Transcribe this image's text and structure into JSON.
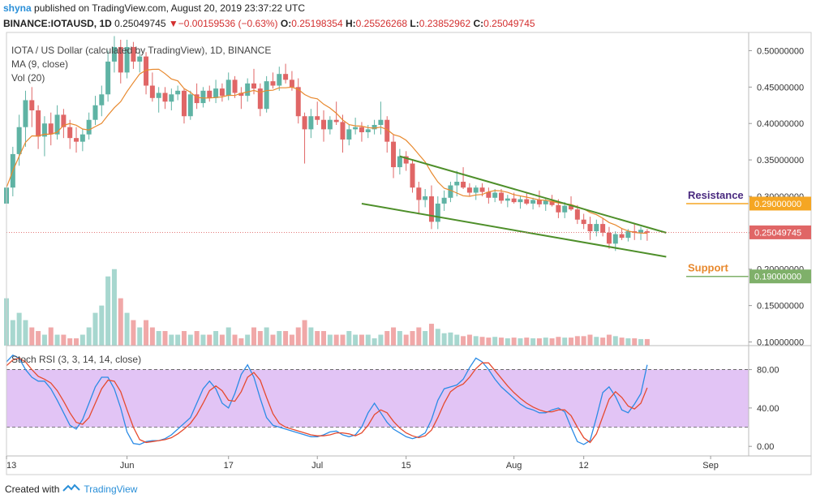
{
  "header": {
    "user": "shyna",
    "published": "published on TradingView.com, August 20, 2019 23:37:22 UTC",
    "symbol": "BINANCE:IOTAUSD, 1D",
    "price": "0.25049745",
    "change": "−0.00159536 (−0.63%)",
    "o_label": "O:",
    "o_val": "0.25198354",
    "h_label": "H:",
    "h_val": "0.25526268",
    "l_label": "L:",
    "l_val": "0.23852962",
    "c_label": "C:",
    "c_val": "0.25049745"
  },
  "legend": {
    "title": "IOTA / US Dollar (calculated by TradingView), 1D, BINANCE",
    "ma": "MA (9, close)",
    "vol": "Vol (20)",
    "rsi": "Stoch RSI (3, 3, 14, 14, close)"
  },
  "footer": {
    "created_with": "Created with",
    "brand": "TradingView"
  },
  "annotations": {
    "resistance": "Resistance",
    "support": "Support",
    "resistance_price": "0.29000000",
    "support_price": "0.19000000",
    "last_price": "0.25049745"
  },
  "colors": {
    "up": "#5fb3a4",
    "down": "#e06666",
    "vol_up": "#a7d7cf",
    "vol_down": "#f0a8a8",
    "ma": "#e8892e",
    "trend": "#4e8f2a",
    "resistance_color": "#f5a623",
    "support_color": "#7fb06a",
    "rsi_k": "#2b8be6",
    "rsi_d": "#e64a2e",
    "rsi_band": "#e2c4f5"
  },
  "chart_data": [
    {
      "type": "candlestick",
      "title": "IOTA / US Dollar (calculated by TradingView), 1D, BINANCE",
      "ylim": [
        0.095,
        0.525
      ],
      "yticks": [
        "0.50000000",
        "0.45000000",
        "0.40000000",
        "0.35000000",
        "0.30000000",
        "0.25000000",
        "0.20000000",
        "0.15000000",
        "0.10000000"
      ],
      "xticks": [
        "13",
        "Jun",
        "17",
        "Jul",
        "15",
        "Aug",
        "12",
        "Sep"
      ],
      "x_range": [
        "2019-05-13",
        "2019-09-07"
      ],
      "xtick_dates": [
        "2019-05-13",
        "2019-06-01",
        "2019-06-17",
        "2019-07-01",
        "2019-07-15",
        "2019-08-01",
        "2019-08-12",
        "2019-09-01"
      ],
      "ohlc": [
        [
          0.29,
          0.325,
          0.275,
          0.312
        ],
        [
          0.312,
          0.368,
          0.3,
          0.358
        ],
        [
          0.358,
          0.412,
          0.342,
          0.395
        ],
        [
          0.395,
          0.445,
          0.368,
          0.432
        ],
        [
          0.432,
          0.45,
          0.395,
          0.418
        ],
        [
          0.418,
          0.425,
          0.365,
          0.382
        ],
        [
          0.382,
          0.41,
          0.355,
          0.4
        ],
        [
          0.4,
          0.415,
          0.37,
          0.385
        ],
        [
          0.385,
          0.425,
          0.378,
          0.412
        ],
        [
          0.412,
          0.42,
          0.38,
          0.395
        ],
        [
          0.395,
          0.405,
          0.365,
          0.38
        ],
        [
          0.38,
          0.395,
          0.36,
          0.375
        ],
        [
          0.375,
          0.392,
          0.362,
          0.385
        ],
        [
          0.385,
          0.415,
          0.378,
          0.405
        ],
        [
          0.405,
          0.438,
          0.398,
          0.425
        ],
        [
          0.425,
          0.452,
          0.41,
          0.44
        ],
        [
          0.44,
          0.5,
          0.43,
          0.485
        ],
        [
          0.485,
          0.52,
          0.47,
          0.505
        ],
        [
          0.505,
          0.515,
          0.455,
          0.47
        ],
        [
          0.47,
          0.515,
          0.462,
          0.505
        ],
        [
          0.505,
          0.512,
          0.475,
          0.485
        ],
        [
          0.485,
          0.5,
          0.47,
          0.492
        ],
        [
          0.492,
          0.498,
          0.44,
          0.452
        ],
        [
          0.452,
          0.47,
          0.43,
          0.435
        ],
        [
          0.435,
          0.45,
          0.415,
          0.442
        ],
        [
          0.442,
          0.45,
          0.42,
          0.43
        ],
        [
          0.43,
          0.448,
          0.418,
          0.44
        ],
        [
          0.44,
          0.452,
          0.432,
          0.445
        ],
        [
          0.445,
          0.448,
          0.4,
          0.41
        ],
        [
          0.41,
          0.445,
          0.405,
          0.44
        ],
        [
          0.44,
          0.455,
          0.42,
          0.428
        ],
        [
          0.428,
          0.45,
          0.422,
          0.445
        ],
        [
          0.445,
          0.452,
          0.43,
          0.435
        ],
        [
          0.435,
          0.46,
          0.428,
          0.448
        ],
        [
          0.448,
          0.455,
          0.43,
          0.438
        ],
        [
          0.438,
          0.47,
          0.432,
          0.46
        ],
        [
          0.46,
          0.465,
          0.435,
          0.442
        ],
        [
          0.442,
          0.45,
          0.42,
          0.438
        ],
        [
          0.438,
          0.462,
          0.43,
          0.455
        ],
        [
          0.455,
          0.475,
          0.44,
          0.448
        ],
        [
          0.448,
          0.455,
          0.41,
          0.42
        ],
        [
          0.42,
          0.465,
          0.415,
          0.458
        ],
        [
          0.458,
          0.47,
          0.448,
          0.452
        ],
        [
          0.452,
          0.478,
          0.445,
          0.468
        ],
        [
          0.468,
          0.482,
          0.455,
          0.46
        ],
        [
          0.46,
          0.472,
          0.445,
          0.45
        ],
        [
          0.45,
          0.462,
          0.4,
          0.41
        ],
        [
          0.41,
          0.415,
          0.345,
          0.392
        ],
        [
          0.392,
          0.42,
          0.38,
          0.41
        ],
        [
          0.41,
          0.43,
          0.398,
          0.405
        ],
        [
          0.405,
          0.418,
          0.375,
          0.392
        ],
        [
          0.392,
          0.41,
          0.385,
          0.405
        ],
        [
          0.405,
          0.43,
          0.398,
          0.402
        ],
        [
          0.402,
          0.412,
          0.36,
          0.378
        ],
        [
          0.378,
          0.398,
          0.37,
          0.392
        ],
        [
          0.392,
          0.408,
          0.385,
          0.395
        ],
        [
          0.395,
          0.402,
          0.375,
          0.388
        ],
        [
          0.388,
          0.398,
          0.38,
          0.392
        ],
        [
          0.392,
          0.405,
          0.385,
          0.398
        ],
        [
          0.398,
          0.43,
          0.385,
          0.405
        ],
        [
          0.405,
          0.41,
          0.36,
          0.375
        ],
        [
          0.375,
          0.385,
          0.325,
          0.34
        ],
        [
          0.34,
          0.365,
          0.33,
          0.355
        ],
        [
          0.355,
          0.362,
          0.335,
          0.345
        ],
        [
          0.345,
          0.35,
          0.305,
          0.312
        ],
        [
          0.312,
          0.32,
          0.275,
          0.295
        ],
        [
          0.295,
          0.31,
          0.285,
          0.3
        ],
        [
          0.3,
          0.315,
          0.255,
          0.265
        ],
        [
          0.265,
          0.3,
          0.255,
          0.29
        ],
        [
          0.29,
          0.308,
          0.28,
          0.298
        ],
        [
          0.298,
          0.32,
          0.292,
          0.315
        ],
        [
          0.315,
          0.335,
          0.3,
          0.32
        ],
        [
          0.32,
          0.34,
          0.31,
          0.312
        ],
        [
          0.312,
          0.318,
          0.3,
          0.305
        ],
        [
          0.305,
          0.315,
          0.295,
          0.312
        ],
        [
          0.312,
          0.318,
          0.3,
          0.306
        ],
        [
          0.306,
          0.312,
          0.29,
          0.298
        ],
        [
          0.298,
          0.31,
          0.292,
          0.305
        ],
        [
          0.305,
          0.31,
          0.29,
          0.294
        ],
        [
          0.294,
          0.302,
          0.285,
          0.297
        ],
        [
          0.297,
          0.305,
          0.29,
          0.292
        ],
        [
          0.292,
          0.3,
          0.283,
          0.296
        ],
        [
          0.296,
          0.304,
          0.288,
          0.29
        ],
        [
          0.29,
          0.298,
          0.282,
          0.295
        ],
        [
          0.295,
          0.308,
          0.285,
          0.289
        ],
        [
          0.289,
          0.298,
          0.28,
          0.294
        ],
        [
          0.294,
          0.302,
          0.286,
          0.288
        ],
        [
          0.288,
          0.296,
          0.27,
          0.278
        ],
        [
          0.278,
          0.292,
          0.27,
          0.287
        ],
        [
          0.287,
          0.3,
          0.28,
          0.282
        ],
        [
          0.282,
          0.288,
          0.262,
          0.268
        ],
        [
          0.268,
          0.276,
          0.255,
          0.262
        ],
        [
          0.262,
          0.272,
          0.24,
          0.252
        ],
        [
          0.252,
          0.268,
          0.245,
          0.262
        ],
        [
          0.262,
          0.27,
          0.245,
          0.25
        ],
        [
          0.25,
          0.258,
          0.228,
          0.235
        ],
        [
          0.235,
          0.252,
          0.225,
          0.248
        ],
        [
          0.248,
          0.256,
          0.24,
          0.243
        ],
        [
          0.243,
          0.255,
          0.238,
          0.252
        ],
        [
          0.252,
          0.262,
          0.24,
          0.25
        ],
        [
          0.25,
          0.258,
          0.24,
          0.254
        ],
        [
          0.252,
          0.255,
          0.239,
          0.25
        ]
      ],
      "volume": [
        0.16,
        0.13,
        0.14,
        0.13,
        0.12,
        0.115,
        0.11,
        0.12,
        0.11,
        0.11,
        0.105,
        0.105,
        0.11,
        0.12,
        0.14,
        0.15,
        0.19,
        0.2,
        0.16,
        0.14,
        0.13,
        0.12,
        0.13,
        0.12,
        0.115,
        0.115,
        0.11,
        0.11,
        0.115,
        0.11,
        0.115,
        0.11,
        0.11,
        0.115,
        0.11,
        0.12,
        0.11,
        0.105,
        0.11,
        0.12,
        0.115,
        0.12,
        0.11,
        0.115,
        0.115,
        0.11,
        0.12,
        0.13,
        0.12,
        0.115,
        0.115,
        0.11,
        0.11,
        0.11,
        0.115,
        0.11,
        0.11,
        0.11,
        0.105,
        0.11,
        0.115,
        0.12,
        0.115,
        0.11,
        0.115,
        0.12,
        0.115,
        0.125,
        0.118,
        0.112,
        0.113,
        0.11,
        0.108,
        0.11,
        0.108,
        0.107,
        0.106,
        0.107,
        0.106,
        0.105,
        0.106,
        0.105,
        0.106,
        0.105,
        0.105,
        0.106,
        0.105,
        0.107,
        0.106,
        0.106,
        0.108,
        0.108,
        0.11,
        0.107,
        0.106,
        0.11,
        0.108,
        0.106,
        0.105,
        0.105,
        0.104,
        0.104
      ],
      "series": [
        {
          "name": "MA (9, close)"
        },
        {
          "name": "Vol (20)"
        }
      ],
      "trend_resistance": [
        [
          "2019-07-14",
          0.355
        ],
        [
          "2019-08-25",
          0.25
        ]
      ],
      "trend_support": [
        [
          "2019-07-08",
          0.29
        ],
        [
          "2019-08-25",
          0.217
        ]
      ],
      "resistance_level": 0.29,
      "support_level": 0.19
    },
    {
      "type": "line",
      "title": "Stoch RSI (3, 3, 14, 14, close)",
      "ylim": [
        -10,
        105
      ],
      "yticks": [
        "80.00",
        "40.00",
        "0.00"
      ],
      "band": [
        20,
        80
      ],
      "series": [
        {
          "name": "K",
          "values": [
            88,
            95,
            92,
            80,
            72,
            68,
            68,
            60,
            48,
            35,
            22,
            18,
            28,
            45,
            62,
            72,
            72,
            60,
            40,
            15,
            3,
            2,
            5,
            6,
            6,
            8,
            12,
            18,
            24,
            30,
            45,
            60,
            68,
            60,
            45,
            40,
            55,
            75,
            85,
            72,
            50,
            30,
            22,
            20,
            18,
            16,
            14,
            12,
            10,
            10,
            12,
            15,
            16,
            12,
            10,
            12,
            20,
            35,
            45,
            35,
            25,
            18,
            14,
            10,
            8,
            10,
            14,
            28,
            48,
            60,
            62,
            64,
            70,
            82,
            92,
            88,
            80,
            70,
            62,
            56,
            50,
            44,
            40,
            38,
            35,
            35,
            38,
            40,
            36,
            20,
            5,
            2,
            6,
            30,
            56,
            62,
            52,
            38,
            35,
            44,
            55,
            85
          ]
        },
        {
          "name": "D",
          "values": [
            84,
            90,
            92,
            88,
            80,
            73,
            70,
            66,
            58,
            47,
            35,
            25,
            23,
            30,
            45,
            60,
            69,
            68,
            57,
            38,
            20,
            7,
            4,
            5,
            6,
            7,
            9,
            13,
            18,
            24,
            33,
            45,
            58,
            63,
            58,
            48,
            47,
            57,
            72,
            77,
            69,
            51,
            34,
            24,
            20,
            18,
            16,
            14,
            12,
            11,
            11,
            12,
            14,
            14,
            13,
            11,
            14,
            22,
            33,
            38,
            35,
            26,
            19,
            14,
            11,
            9,
            11,
            17,
            30,
            45,
            57,
            62,
            65,
            72,
            81,
            87,
            87,
            79,
            71,
            63,
            56,
            50,
            45,
            41,
            38,
            36,
            36,
            38,
            38,
            32,
            20,
            9,
            4,
            13,
            31,
            49,
            57,
            51,
            42,
            39,
            45,
            61
          ]
        }
      ]
    }
  ]
}
